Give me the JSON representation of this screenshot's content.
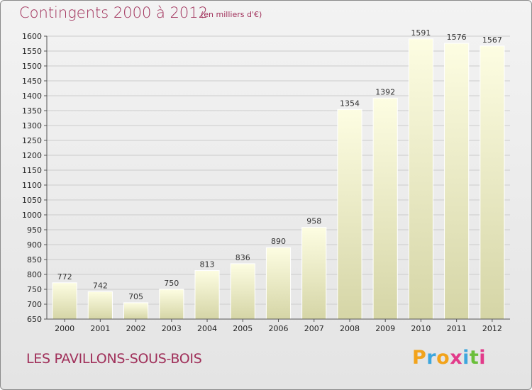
{
  "header": {
    "title": "Contingents 2000 à 2012",
    "subtitle": "(en milliers d'€)"
  },
  "footer": {
    "location": "LES PAVILLONS-SOUS-BOIS",
    "brand": "Proxiti"
  },
  "colors": {
    "title": "#a0305a",
    "bar_top": "#fdfde2",
    "bar_bottom": "#d5d5a6",
    "grid": "#cccccc"
  },
  "chart_data": {
    "type": "bar",
    "title": "Contingents 2000 à 2012",
    "subtitle": "(en milliers d'€)",
    "categories": [
      "2000",
      "2001",
      "2002",
      "2003",
      "2004",
      "2005",
      "2006",
      "2007",
      "2008",
      "2009",
      "2010",
      "2011",
      "2012"
    ],
    "values": [
      772,
      742,
      705,
      750,
      813,
      836,
      890,
      958,
      1354,
      1392,
      1591,
      1576,
      1567
    ],
    "ylim": [
      650,
      1600
    ],
    "ytick_step": 50,
    "grid": true,
    "data_labels": true
  }
}
